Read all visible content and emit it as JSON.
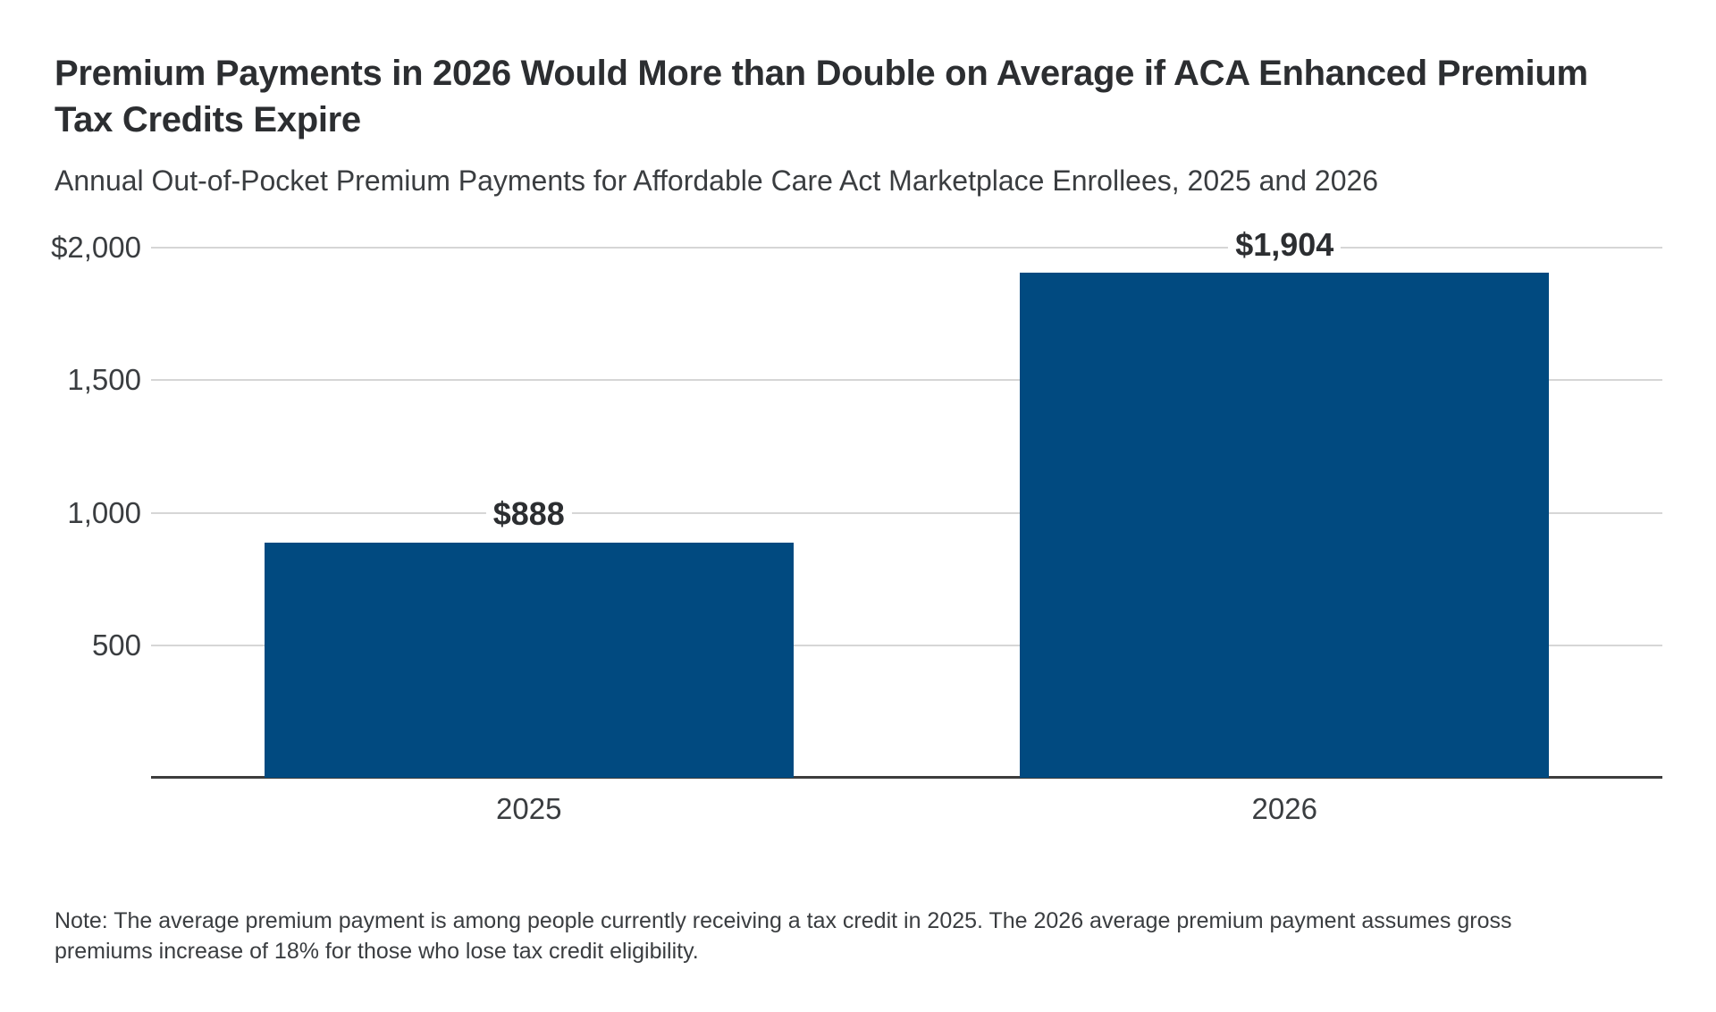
{
  "header": {
    "title_line1": "Premium Payments in 2026 Would More than Double on Average if ACA Enhanced Premium",
    "title_line2": "Tax Credits Expire",
    "subtitle": "Annual Out-of-Pocket Premium Payments for Affordable Care Act Marketplace Enrollees, 2025 and 2026"
  },
  "note": {
    "line1": "Note: The average premium payment is among people currently receiving a tax credit in 2025. The 2026 average premium payment assumes gross",
    "line2": "premiums increase of 18% for those who lose tax credit eligibility."
  },
  "chart_data": {
    "type": "bar",
    "title": "Premium Payments in 2026 Would More than Double on Average if ACA Enhanced Premium Tax Credits Expire",
    "subtitle": "Annual Out-of-Pocket Premium Payments for Affordable Care Act Marketplace Enrollees, 2025 and 2026",
    "categories": [
      "2025",
      "2026"
    ],
    "values": [
      888,
      1904
    ],
    "value_labels": [
      "$888",
      "$1,904"
    ],
    "xlabel": "",
    "ylabel": "",
    "ylim": [
      0,
      2000
    ],
    "yticks": [
      {
        "value": 2000,
        "label": "$2,000"
      },
      {
        "value": 1500,
        "label": "1,500"
      },
      {
        "value": 1000,
        "label": "1,000"
      },
      {
        "value": 500,
        "label": "500"
      }
    ],
    "grid": "horizontal",
    "legend": "none",
    "bar_color": "#014a80",
    "note": "Note: The average premium payment is among people currently receiving a tax credit in 2025. The 2026 average premium payment assumes gross premiums increase of 18% for those who lose tax credit eligibility."
  },
  "colors": {
    "bar": "#014a80",
    "gridline": "#d6d6d6",
    "axis_line": "#3d3d3d",
    "title_text": "#2c2e31",
    "body_text": "#3a3d40",
    "background": "#ffffff"
  }
}
